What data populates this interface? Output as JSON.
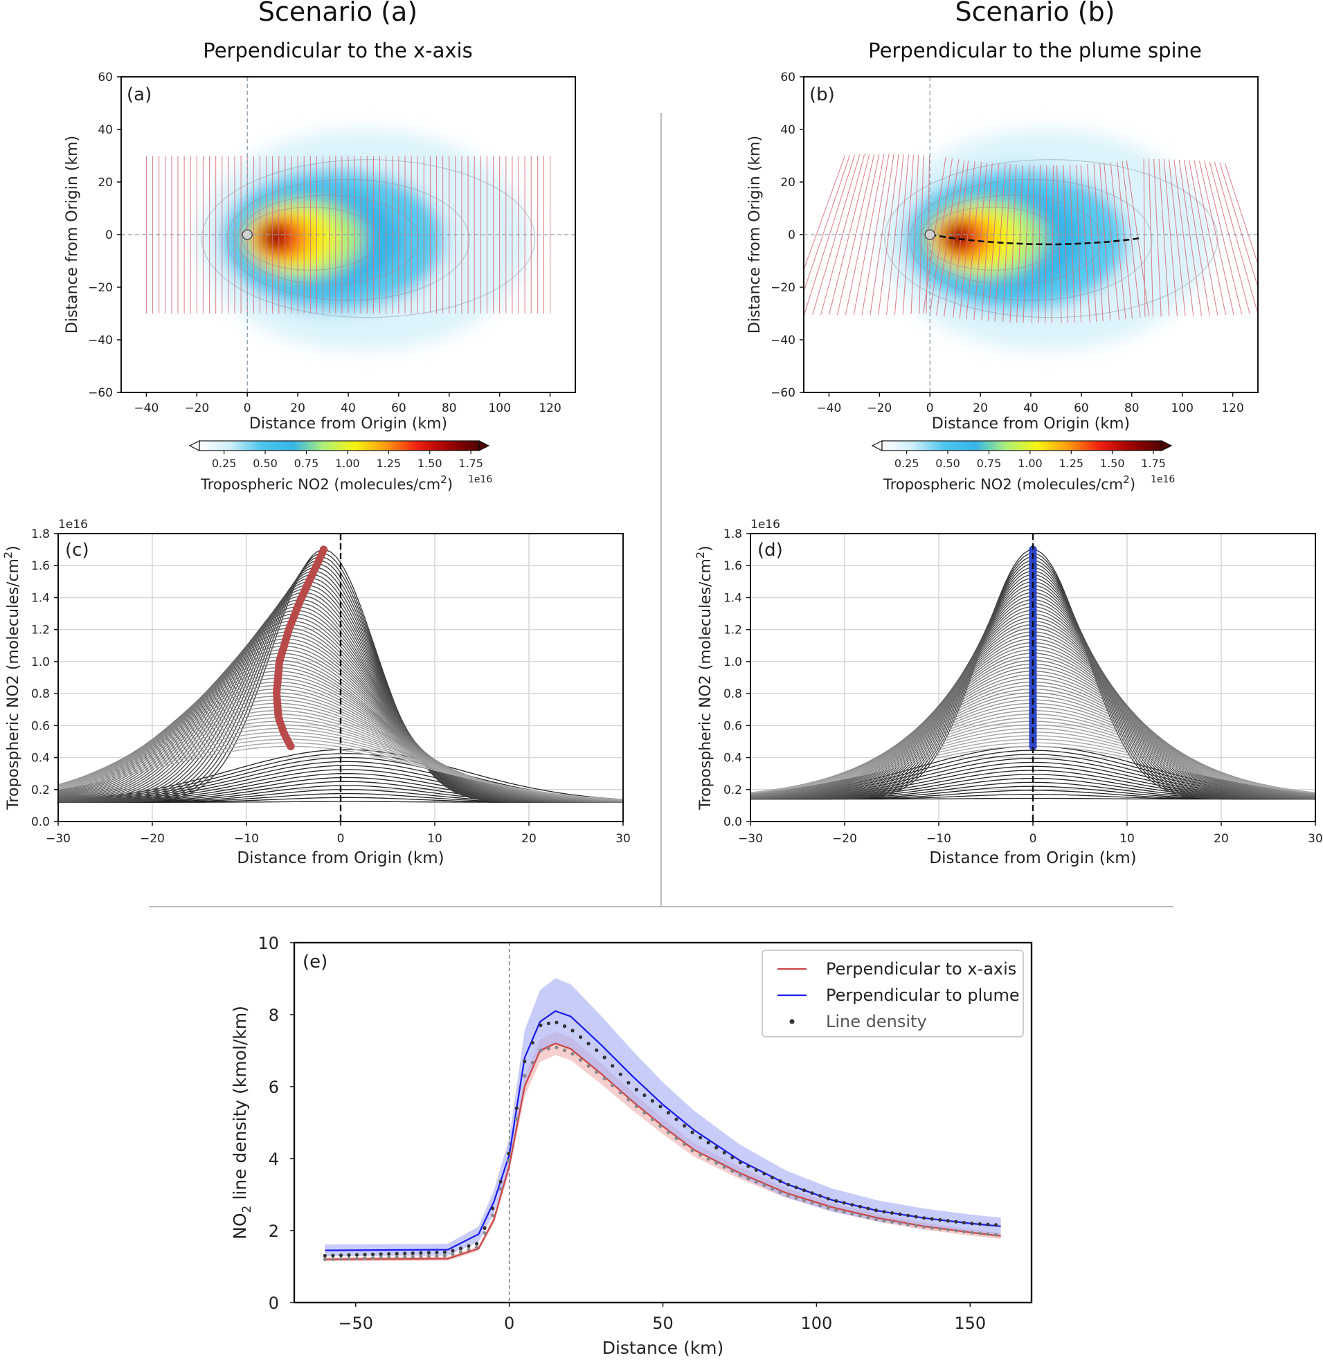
{
  "figure": {
    "scenario_a_title": "Scenario (a)",
    "scenario_a_subtitle": "Perpendicular to the x-axis",
    "scenario_b_title": "Scenario (b)",
    "scenario_b_subtitle": "Perpendicular to the plume spine",
    "colors": {
      "divider": "#bbbbbb",
      "transect_red": "#d9707c",
      "gray_curve": "#555555",
      "dark_curve": "#222222",
      "marker_red": "#b84a4a",
      "marker_blue": "#2f47c8",
      "fit_red": "#cc4444",
      "fit_blue": "#1a1aee",
      "band_red": "#f0b4b4",
      "band_blue": "#aab0f5"
    }
  },
  "chart_data": [
    {
      "type": "heatmap",
      "panel_label": "(a)",
      "xlabel": "Distance from Origin (km)",
      "ylabel": "Distance from Origin (km)",
      "xlim": [
        -50,
        130
      ],
      "ylim": [
        -60,
        60
      ],
      "xticks": [
        -40,
        -20,
        0,
        20,
        40,
        60,
        80,
        100,
        120
      ],
      "yticks": [
        -60,
        -40,
        -20,
        0,
        20,
        40,
        60
      ],
      "source_marker": [
        0,
        0
      ],
      "plume_peak_km": [
        12,
        -1
      ],
      "transects": "perpendicular to the x-axis",
      "transect_x_range": [
        -40,
        122
      ],
      "transect_y_range": [
        -30,
        30
      ],
      "colorbar": {
        "label": "Tropospheric NO2 (molecules/cm",
        "label_sup": "2",
        "label_end": ")",
        "scale_label": "1e16",
        "ticks": [
          "0.25",
          "0.50",
          "0.75",
          "1.00",
          "1.25",
          "1.50",
          "1.75"
        ],
        "range": [
          0.1,
          1.8
        ],
        "extend": "both",
        "colormap": [
          "#ffffff",
          "#cdeefa",
          "#4fc6ee",
          "#35b5e8",
          "#aef07a",
          "#f5f510",
          "#ff9a10",
          "#f02010",
          "#a00000",
          "#500000"
        ]
      }
    },
    {
      "type": "heatmap",
      "panel_label": "(b)",
      "xlabel": "Distance from Origin (km)",
      "ylabel": "Distance from Origin (km)",
      "xlim": [
        -50,
        130
      ],
      "ylim": [
        -60,
        60
      ],
      "xticks": [
        -40,
        -20,
        0,
        20,
        40,
        60,
        80,
        100,
        120
      ],
      "yticks": [
        -60,
        -40,
        -20,
        0,
        20,
        40,
        60
      ],
      "source_marker": [
        0,
        0
      ],
      "plume_peak_km": [
        12,
        -1
      ],
      "transects": "perpendicular to the plume spine",
      "plume_spine": {
        "x": [
          0,
          10,
          20,
          30,
          40,
          50,
          60,
          70,
          80,
          84
        ],
        "y": [
          0,
          -1.5,
          -2.5,
          -3.2,
          -3.6,
          -3.7,
          -3.4,
          -2.8,
          -1.8,
          -1.2
        ]
      },
      "colorbar": {
        "label": "Tropospheric NO2 (molecules/cm",
        "label_sup": "2",
        "label_end": ")",
        "scale_label": "1e16",
        "ticks": [
          "0.25",
          "0.50",
          "0.75",
          "1.00",
          "1.25",
          "1.50",
          "1.75"
        ],
        "range": [
          0.1,
          1.8
        ],
        "extend": "both",
        "colormap": [
          "#ffffff",
          "#cdeefa",
          "#4fc6ee",
          "#35b5e8",
          "#aef07a",
          "#f5f510",
          "#ff9a10",
          "#f02010",
          "#a00000",
          "#500000"
        ]
      }
    },
    {
      "type": "line",
      "panel_label": "(c)",
      "xlabel": "Distance from Origin (km)",
      "ylabel": "Tropospheric NO2 (molecules/cm",
      "ylabel_sup": "2",
      "ylabel_end": ")",
      "offset_text": "1e16",
      "xlim": [
        -30,
        30
      ],
      "ylim": [
        0.0,
        1.8
      ],
      "xticks": [
        -30,
        -20,
        -10,
        0,
        10,
        20,
        30
      ],
      "yticks": [
        "0.0",
        "0.2",
        "0.4",
        "0.6",
        "0.8",
        "1.0",
        "1.2",
        "1.4",
        "1.6",
        "1.8"
      ],
      "grid": true,
      "n_profiles": 70,
      "background": 0.12,
      "peak_max": 1.7,
      "peak_min": 0.47,
      "peak_locus": {
        "x": [
          -5.3,
          -6.0,
          -6.6,
          -6.8,
          -6.5,
          -5.5,
          -4.3,
          -3.2,
          -2.4,
          -1.8
        ],
        "y": [
          0.47,
          0.55,
          0.65,
          0.8,
          1.0,
          1.2,
          1.38,
          1.52,
          1.62,
          1.7
        ]
      }
    },
    {
      "type": "line",
      "panel_label": "(d)",
      "xlabel": "Distance from Origin (km)",
      "ylabel": "Tropospheric NO2 (molecules/cm",
      "ylabel_sup": "2",
      "ylabel_end": ")",
      "offset_text": "1e16",
      "xlim": [
        -30,
        30
      ],
      "ylim": [
        0.0,
        1.8
      ],
      "xticks": [
        -30,
        -20,
        -10,
        0,
        10,
        20,
        30
      ],
      "yticks": [
        "0.0",
        "0.2",
        "0.4",
        "0.6",
        "0.8",
        "1.0",
        "1.2",
        "1.4",
        "1.6",
        "1.8"
      ],
      "grid": true,
      "n_profiles": 70,
      "background": 0.14,
      "peak_max": 1.7,
      "peak_min": 0.47,
      "peak_locus": {
        "x": [
          0,
          0,
          0,
          0,
          0,
          0,
          0,
          0,
          0,
          0
        ],
        "y": [
          0.47,
          0.6,
          0.73,
          0.86,
          0.99,
          1.12,
          1.25,
          1.38,
          1.54,
          1.7
        ]
      }
    },
    {
      "type": "line",
      "panel_label": "(e)",
      "xlabel": "Distance (km)",
      "ylabel": "NO",
      "ylabel_sub": "2",
      "ylabel_end": " line density (kmol/km)",
      "xlim": [
        -70,
        170
      ],
      "ylim": [
        0,
        10
      ],
      "xticks": [
        -50,
        0,
        50,
        100,
        150
      ],
      "yticks": [
        0,
        2,
        4,
        6,
        8,
        10
      ],
      "grid": false,
      "x": [
        -60,
        -20,
        -10,
        -5,
        0,
        5,
        10,
        15,
        20,
        30,
        40,
        50,
        60,
        75,
        90,
        105,
        120,
        135,
        150,
        160
      ],
      "series": [
        {
          "name": "Perpendicular to x-axis",
          "values": [
            1.2,
            1.22,
            1.5,
            2.3,
            3.8,
            6.0,
            7.0,
            7.2,
            7.05,
            6.35,
            5.6,
            4.9,
            4.25,
            3.6,
            3.05,
            2.65,
            2.35,
            2.12,
            1.95,
            1.85
          ],
          "band": 0.18
        },
        {
          "name": "Perpendicular to plume",
          "values": [
            1.45,
            1.47,
            1.9,
            2.8,
            4.1,
            6.8,
            7.8,
            8.1,
            7.95,
            7.15,
            6.3,
            5.5,
            4.8,
            3.95,
            3.3,
            2.85,
            2.55,
            2.35,
            2.2,
            2.12
          ],
          "band": 0.45
        },
        {
          "name": "Line density",
          "values": [
            1.3,
            1.4,
            1.65,
            2.7,
            4.2,
            6.7,
            7.7,
            7.8,
            7.6,
            6.9,
            6.0,
            5.4,
            4.7,
            3.9,
            3.3,
            2.85,
            2.55,
            2.35,
            2.2,
            2.15
          ]
        },
        {
          "name": "",
          "values": [
            1.2,
            1.3,
            1.55,
            2.5,
            4.0,
            6.3,
            7.0,
            7.1,
            6.95,
            6.3,
            5.55,
            4.85,
            4.2,
            3.55,
            3.0,
            2.6,
            2.3,
            2.1,
            1.95,
            1.87
          ]
        }
      ],
      "legend_location": "upper right"
    }
  ]
}
